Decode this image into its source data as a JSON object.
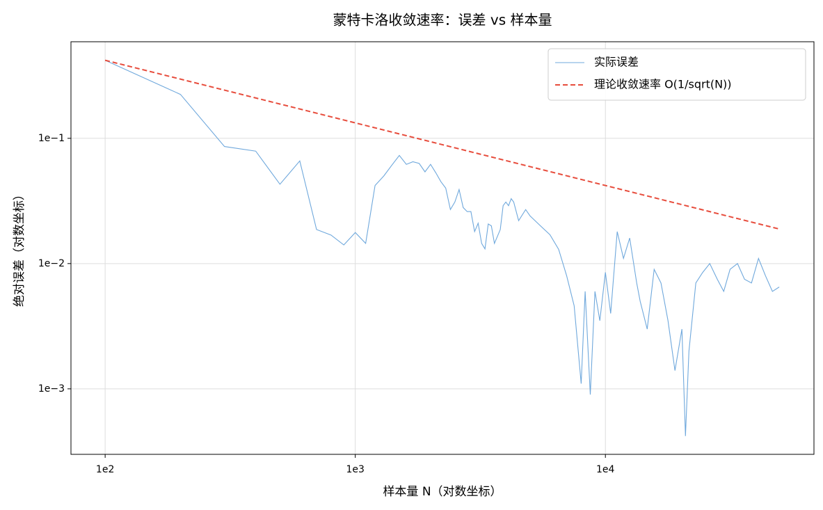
{
  "chart_data": {
    "type": "line",
    "title": "蒙特卡洛收敛速率：误差 vs 样本量",
    "x_label": "样本量 N（对数坐标）",
    "y_label": "绝对误差（对数坐标）",
    "xscale": "log",
    "yscale": "log",
    "grid": true,
    "legend": "upper right",
    "xlim": [
      73,
      68200
    ],
    "ylim": [
      0.0003,
      0.59
    ],
    "xticks": [
      {
        "value": 100,
        "label": "1e2"
      },
      {
        "value": 1000,
        "label": "1e3"
      },
      {
        "value": 10000,
        "label": "1e4"
      }
    ],
    "yticks": [
      {
        "value": 0.001,
        "label": "1e−3"
      },
      {
        "value": 0.01,
        "label": "1e−2"
      },
      {
        "value": 0.1,
        "label": "1e−1"
      }
    ],
    "series": [
      {
        "name": "实际误差",
        "color": "#6fa8dc",
        "style": "solid",
        "x": [
          100,
          200,
          300,
          400,
          500,
          600,
          700,
          800,
          900,
          1000,
          1100,
          1200,
          1300,
          1400,
          1500,
          1600,
          1700,
          1800,
          1900,
          2000,
          2100,
          2200,
          2300,
          2400,
          2500,
          2600,
          2700,
          2800,
          2900,
          3000,
          3100,
          3200,
          3300,
          3400,
          3500,
          3600,
          3700,
          3800,
          3900,
          4000,
          4100,
          4200,
          4300,
          4500,
          4800,
          5000,
          5500,
          6000,
          6500,
          7000,
          7500,
          8000,
          8300,
          8700,
          9080,
          9500,
          10000,
          10500,
          11150,
          11810,
          12500,
          13340,
          13770,
          14690,
          15660,
          16680,
          17790,
          18970,
          20230,
          20890,
          21570,
          22990,
          24500,
          26130,
          28000,
          29720,
          31500,
          33740,
          36000,
          38380,
          40930,
          43650,
          46530,
          49550
        ],
        "values": [
          0.42,
          0.224,
          0.086,
          0.079,
          0.043,
          0.066,
          0.0187,
          0.0169,
          0.0141,
          0.0177,
          0.0145,
          0.042,
          0.05,
          0.061,
          0.073,
          0.062,
          0.065,
          0.063,
          0.054,
          0.062,
          0.053,
          0.045,
          0.04,
          0.027,
          0.031,
          0.039,
          0.028,
          0.026,
          0.026,
          0.018,
          0.021,
          0.0145,
          0.0131,
          0.0207,
          0.02,
          0.0145,
          0.0165,
          0.0187,
          0.029,
          0.031,
          0.029,
          0.033,
          0.031,
          0.022,
          0.027,
          0.024,
          0.02,
          0.017,
          0.013,
          0.008,
          0.0046,
          0.0011,
          0.006,
          0.0009,
          0.006,
          0.0035,
          0.0085,
          0.004,
          0.018,
          0.011,
          0.016,
          0.007,
          0.005,
          0.003,
          0.009,
          0.007,
          0.0035,
          0.0014,
          0.003,
          0.00042,
          0.002,
          0.007,
          0.0085,
          0.01,
          0.0075,
          0.006,
          0.009,
          0.01,
          0.0075,
          0.007,
          0.011,
          0.008,
          0.006,
          0.0065
        ]
      },
      {
        "name": "理论收敛速率 O(1/sqrt(N))",
        "color": "#e74c3c",
        "style": "dashed",
        "x": [
          100,
          50000
        ],
        "values": [
          0.42,
          0.0188
        ]
      }
    ]
  }
}
